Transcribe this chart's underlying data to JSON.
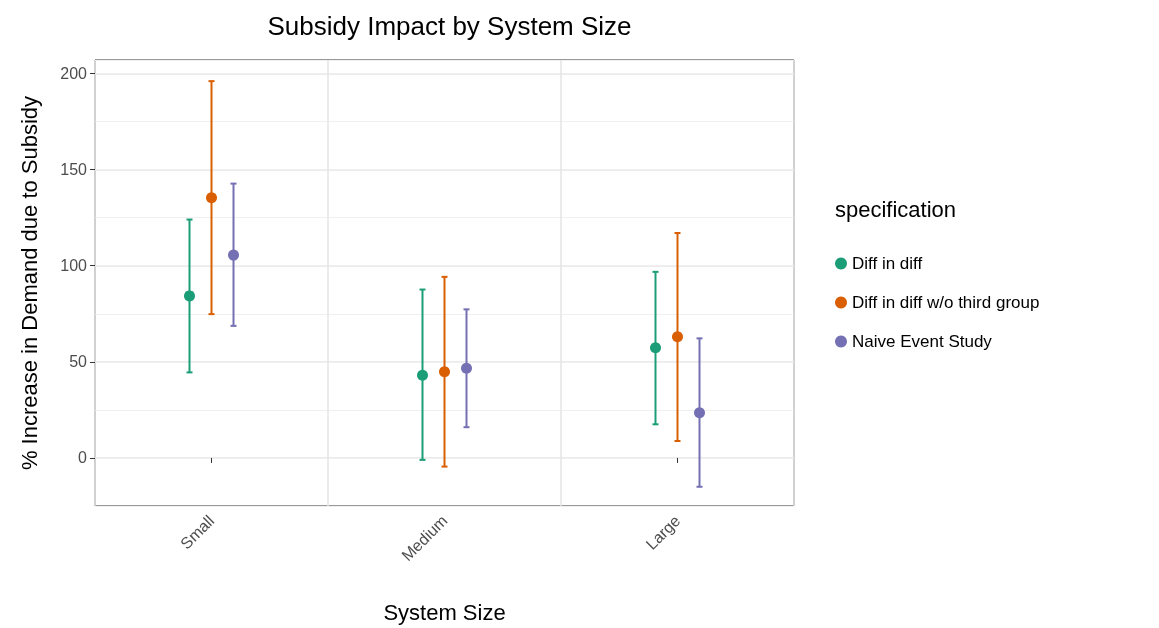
{
  "chart_data": {
    "type": "scatter",
    "title": "Subsidy Impact by System Size",
    "xlabel": "System Size",
    "ylabel": "% Increase in Demand due to Subsidy",
    "legend_title": "specification",
    "categories": [
      "Small",
      "Medium",
      "Large"
    ],
    "series": [
      {
        "name": "Diff in diff",
        "color": "#1b9e77",
        "values": [
          84.3,
          43,
          57.3
        ],
        "errors": [
          [
            44.5,
            124
          ],
          [
            -1,
            87.6
          ],
          [
            17.5,
            96.8
          ]
        ]
      },
      {
        "name": "Diff in diff w/o third group",
        "color": "#d95f02",
        "values": [
          135.4,
          44.8,
          63
        ],
        "errors": [
          [
            74.8,
            196
          ],
          [
            -4.5,
            94.2
          ],
          [
            8.8,
            117
          ]
        ]
      },
      {
        "name": "Naive Event Study",
        "color": "#7570b3",
        "values": [
          105.5,
          46.6,
          23.5
        ],
        "errors": [
          [
            68.7,
            142.7
          ],
          [
            16,
            77.3
          ],
          [
            -15,
            62.2
          ]
        ]
      }
    ],
    "ylim": [
      -25,
      207
    ],
    "yticks": [
      0,
      50,
      100,
      150,
      200
    ],
    "grid": true,
    "legend": "right",
    "marker": "circle"
  }
}
